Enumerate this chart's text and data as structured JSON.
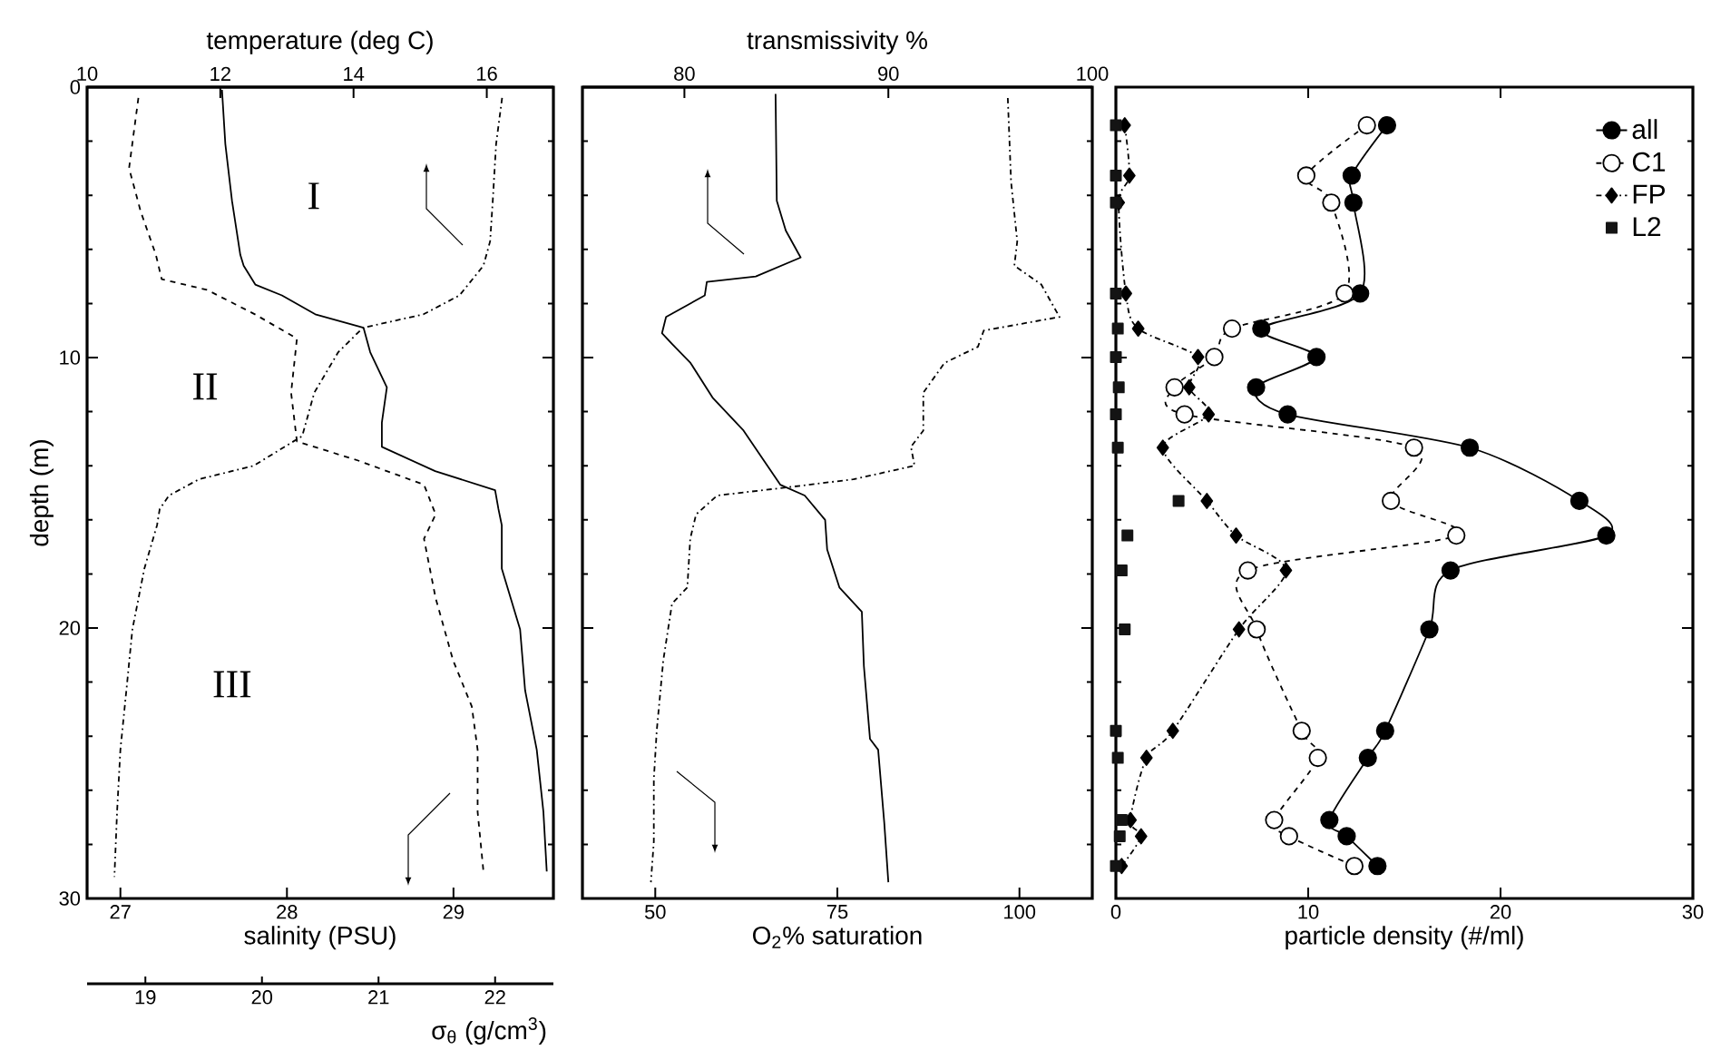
{
  "chart_data": [
    {
      "type": "line",
      "xlabel": "salinity (PSU)",
      "x2label": "temperature (deg C)",
      "ylabel": "depth (m)",
      "xlim": [
        26.8,
        29.6
      ],
      "xticks": [
        27,
        28,
        29
      ],
      "x2lim": [
        10,
        17
      ],
      "x2ticks": [
        10,
        12,
        14,
        16
      ],
      "ylim": [
        30,
        0
      ],
      "yticks": [
        0,
        10,
        20,
        30
      ],
      "marker": "none",
      "annotations": [
        "I",
        "II",
        "III"
      ],
      "series": [
        {
          "color": "#000000",
          "line_style": "solid",
          "x": [
            27.61,
            27.63,
            27.67,
            27.72,
            27.74,
            27.81,
            27.97,
            28.17,
            28.46,
            28.5,
            28.6,
            28.57,
            28.57,
            28.89,
            29.25,
            29.27,
            29.29,
            29.29,
            29.4,
            29.43,
            29.5,
            29.54,
            29.56
          ],
          "values": [
            0.1,
            2.1,
            4.2,
            6.2,
            6.6,
            7.3,
            7.7,
            8.4,
            8.9,
            9.8,
            11.1,
            12.4,
            13.3,
            14.2,
            14.9,
            15.6,
            16.2,
            17.8,
            20.05,
            22.3,
            24.5,
            26.8,
            29.0
          ]
        },
        {
          "color": "#000000",
          "line_style": "dashdot",
          "axis": "x2",
          "x": [
            16.23,
            16.14,
            16.09,
            16.05,
            15.95,
            15.59,
            15.05,
            14.14,
            13.77,
            13.41,
            13.23,
            12.5,
            11.68,
            11.23,
            11.09,
            11.05,
            10.86,
            10.68,
            10.59,
            10.5,
            10.45,
            10.41
          ],
          "values": [
            0.4,
            2.1,
            4.2,
            5.7,
            6.6,
            7.7,
            8.4,
            8.9,
            9.8,
            11.3,
            12.9,
            14.0,
            14.5,
            15.1,
            15.6,
            16.2,
            17.8,
            20.05,
            22.3,
            24.5,
            26.8,
            29.2
          ]
        }
      ]
    },
    {
      "type": "line",
      "xlabel": "σ$_{θ}$ (g/cm$^{3}$)",
      "xlim": [
        18.5,
        22.5
      ],
      "xticks": [
        19,
        20,
        21,
        22
      ],
      "ylim": [
        30,
        0
      ],
      "tick_labels": "x",
      "marker": "none",
      "series": [
        {
          "color": "#000000",
          "line_style": "dashed",
          "x": [
            18.94,
            18.86,
            18.96,
            19.09,
            19.14,
            19.53,
            19.94,
            20.3,
            20.25,
            20.3,
            20.82,
            21.39,
            21.49,
            21.39,
            21.49,
            21.64,
            21.8,
            21.85,
            21.85,
            21.9
          ],
          "values": [
            0.4,
            3.0,
            4.6,
            6.2,
            7.1,
            7.5,
            8.4,
            9.3,
            11.3,
            13.1,
            13.8,
            14.7,
            15.8,
            16.7,
            18.9,
            21.2,
            22.9,
            24.5,
            26.8,
            29.0
          ]
        }
      ]
    },
    {
      "type": "line",
      "xlabel": "O$_{2}$% saturation",
      "x2label": "transmissivity %",
      "xlim": [
        40,
        110
      ],
      "xticks": [
        50,
        75,
        100
      ],
      "x2lim": [
        75,
        100
      ],
      "x2ticks": [
        80,
        90,
        100
      ],
      "ylim": [
        30,
        0
      ],
      "yticks": [
        0,
        10,
        20,
        30
      ],
      "tick_labels": "x",
      "marker": "none",
      "series": [
        {
          "color": "#000000",
          "line_style": "solid",
          "axis": "x2",
          "x": [
            84.47,
            84.53,
            84.97,
            85.7,
            83.5,
            81.1,
            81.0,
            79.1,
            78.9,
            79.4,
            80.3,
            81.4,
            82.9,
            84.7,
            85.9,
            86.9,
            87.0,
            87.6,
            88.7,
            88.8,
            89.1,
            89.5,
            89.8,
            90.0
          ],
          "values": [
            0.25,
            4.2,
            5.3,
            6.3,
            7.0,
            7.2,
            7.7,
            8.5,
            9.1,
            9.5,
            10.2,
            11.5,
            12.7,
            14.7,
            15.1,
            16.0,
            17.1,
            18.5,
            19.4,
            21.4,
            24.1,
            24.5,
            27.2,
            29.4
          ]
        },
        {
          "color": "#000000",
          "line_style": "dashdot",
          "x": [
            98.4,
            98.85,
            99.7,
            99.3,
            103.0,
            105.5,
            95.1,
            94.3,
            89.7,
            86.8,
            86.8,
            85.1,
            85.6,
            77.2,
            68.1,
            58.5,
            55.6,
            54.8,
            54.4,
            52.3,
            51.1,
            50.2,
            49.8,
            49.8,
            49.4
          ],
          "values": [
            0.4,
            3.5,
            5.7,
            6.6,
            7.3,
            8.5,
            9.0,
            9.6,
            10.2,
            11.3,
            12.7,
            13.3,
            14.0,
            14.5,
            14.8,
            15.1,
            15.8,
            16.7,
            18.5,
            19.1,
            21.2,
            23.8,
            25.6,
            27.9,
            29.4
          ]
        }
      ]
    },
    {
      "type": "line",
      "xlabel": "particle density (#/ml)",
      "xlim": [
        0,
        30
      ],
      "xticks": [
        0,
        10,
        20,
        30
      ],
      "ylim": [
        30,
        0
      ],
      "yticks": [
        0,
        10,
        20,
        30
      ],
      "tick_labels": "x",
      "legend": "top right",
      "series": [
        {
          "name": "all",
          "color": "#000000",
          "line_style": "solid",
          "marker": "circle",
          "x": [
            14.1,
            12.26,
            12.35,
            12.7,
            7.56,
            10.43,
            7.29,
            8.93,
            18.4,
            24.1,
            25.5,
            17.4,
            16.3,
            14.0,
            13.1,
            11.1,
            12.0,
            13.6
          ],
          "values": [
            1.41,
            3.27,
            4.27,
            7.63,
            8.93,
            9.98,
            11.1,
            12.1,
            13.33,
            15.3,
            16.58,
            17.87,
            20.05,
            23.8,
            24.8,
            27.1,
            27.7,
            28.8
          ]
        },
        {
          "name": "C1",
          "color": "#000000",
          "line_style": "dashed",
          "marker": "circle-open",
          "x": [
            13.05,
            9.9,
            11.2,
            11.9,
            6.04,
            5.12,
            3.05,
            3.57,
            15.5,
            14.3,
            17.7,
            6.86,
            7.32,
            9.66,
            10.5,
            8.23,
            9.0,
            12.4
          ],
          "values": [
            1.41,
            3.27,
            4.27,
            7.63,
            8.93,
            9.98,
            11.1,
            12.1,
            13.33,
            15.3,
            16.58,
            17.87,
            20.05,
            23.8,
            24.8,
            27.1,
            27.7,
            28.8
          ]
        },
        {
          "name": "FP",
          "color": "#000000",
          "line_style": "dashdot",
          "marker": "diamond",
          "x": [
            0.46,
            0.7,
            0.15,
            0.52,
            1.16,
            4.27,
            3.81,
            4.82,
            2.44,
            4.73,
            6.25,
            8.84,
            6.4,
            2.96,
            1.59,
            0.76,
            1.31,
            0.3
          ],
          "values": [
            1.41,
            3.27,
            4.27,
            7.63,
            8.93,
            9.98,
            11.1,
            12.1,
            13.33,
            15.3,
            16.58,
            17.87,
            20.05,
            23.8,
            24.8,
            27.1,
            27.7,
            28.8
          ]
        },
        {
          "name": "L2",
          "type": "scatter",
          "color": "#141414",
          "marker": "square",
          "x": [
            0,
            0,
            0,
            0,
            0.1,
            0,
            0.15,
            0,
            0.1,
            3.26,
            0.6,
            0.3,
            0.46,
            0,
            0.1,
            0.3,
            0.2,
            0
          ],
          "values": [
            1.41,
            3.27,
            4.27,
            7.63,
            8.93,
            9.98,
            11.1,
            12.1,
            13.33,
            15.3,
            16.58,
            17.87,
            20.05,
            23.8,
            24.8,
            27.1,
            27.7,
            28.8
          ]
        }
      ]
    }
  ]
}
